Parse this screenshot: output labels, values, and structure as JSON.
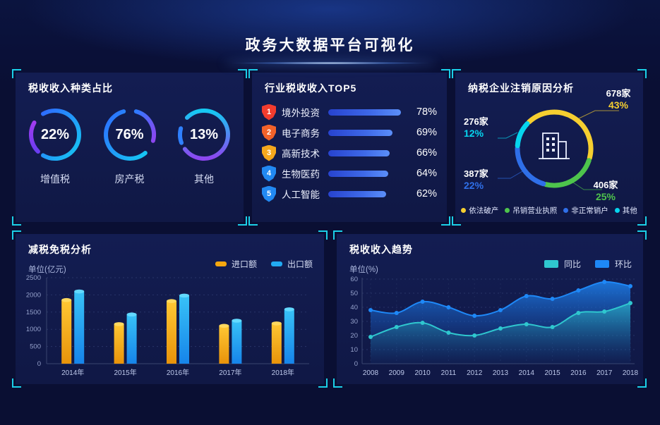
{
  "header": {
    "title": "政务大数据平台可视化"
  },
  "accent": {
    "bracket": "#1bd0e8",
    "panel_bg": "#121b4e",
    "page_bg": "#0a0f33"
  },
  "chart_data": [
    {
      "id": "tax_type_rings",
      "type": "pie",
      "title": "税收收入种类占比",
      "unit": "%",
      "items": [
        {
          "label": "增值税",
          "pct_label": "22%",
          "value": 22
        },
        {
          "label": "房产税",
          "pct_label": "76%",
          "value": 76
        },
        {
          "label": "其他",
          "pct_label": "13%",
          "value": 13
        }
      ]
    },
    {
      "id": "industry_top5",
      "type": "bar",
      "orientation": "horizontal",
      "title": "行业税收收入TOP5",
      "xlim": [
        0,
        100
      ],
      "rows": [
        {
          "rank": "1",
          "label": "境外投资",
          "value": 78,
          "pct_label": "78%",
          "badge_color": "#f23c2e"
        },
        {
          "rank": "2",
          "label": "电子商务",
          "value": 69,
          "pct_label": "69%",
          "badge_color": "#f2622a"
        },
        {
          "rank": "3",
          "label": "高新技术",
          "value": 66,
          "pct_label": "66%",
          "badge_color": "#f5a71d"
        },
        {
          "rank": "4",
          "label": "生物医药",
          "value": 64,
          "pct_label": "64%",
          "badge_color": "#2289f2"
        },
        {
          "rank": "5",
          "label": "人工智能",
          "value": 62,
          "pct_label": "62%",
          "badge_color": "#2289f2"
        }
      ]
    },
    {
      "id": "dereg_reasons",
      "type": "pie",
      "title": "纳税企业注销原因分析",
      "slices": [
        {
          "label": "依法破产",
          "count": "678家",
          "pct_label": "43%",
          "value": 43,
          "color": "#f6cf30"
        },
        {
          "label": "吊销营业执照",
          "count": "406家",
          "pct_label": "25%",
          "value": 25,
          "color": "#4ec44c"
        },
        {
          "label": "非正常销户",
          "count": "387家",
          "pct_label": "22%",
          "value": 22,
          "color": "#2f6fe8"
        },
        {
          "label": "其他",
          "count": "276家",
          "pct_label": "12%",
          "value": 12,
          "color": "#06d5ee"
        }
      ]
    },
    {
      "id": "tax_reduction",
      "type": "bar",
      "title": "减税免税分析",
      "unit": "单位(亿元)",
      "categories": [
        "2014年",
        "2015年",
        "2016年",
        "2017年",
        "2018年"
      ],
      "series": [
        {
          "name": "进口额",
          "color": "#f5a70f",
          "color_top": "#ffc733",
          "color_bottom": "#e8930a",
          "cap": "#ffd95e",
          "values": [
            1850,
            1150,
            1820,
            1100,
            1170
          ]
        },
        {
          "name": "出口额",
          "color": "#22aaf2",
          "color_top": "#38c2f7",
          "color_bottom": "#1684ea",
          "cap": "#63d9ff",
          "values": [
            2100,
            1430,
            1980,
            1250,
            1580
          ]
        }
      ],
      "ylim": [
        0,
        2500
      ],
      "yticks": [
        0,
        500,
        1000,
        1500,
        2000,
        2500
      ],
      "grid": "dotted"
    },
    {
      "id": "tax_trend",
      "type": "area",
      "title": "税收收入趋势",
      "unit": "单位(%)",
      "categories": [
        "2008",
        "2009",
        "2010",
        "2011",
        "2012",
        "2013",
        "2014",
        "2015",
        "2016",
        "2017",
        "2018"
      ],
      "series": [
        {
          "name": "同比",
          "color": "#2fc7cf",
          "values": [
            19,
            26,
            29,
            22,
            20,
            25,
            28,
            26,
            36,
            37,
            43
          ]
        },
        {
          "name": "环比",
          "color": "#1e88f7",
          "values": [
            38,
            36,
            44,
            40,
            34,
            38,
            48,
            46,
            52,
            58,
            55
          ]
        }
      ],
      "ylim": [
        0,
        60
      ],
      "yticks": [
        0,
        10,
        20,
        30,
        40,
        50,
        60
      ],
      "grid": "dotted"
    }
  ]
}
